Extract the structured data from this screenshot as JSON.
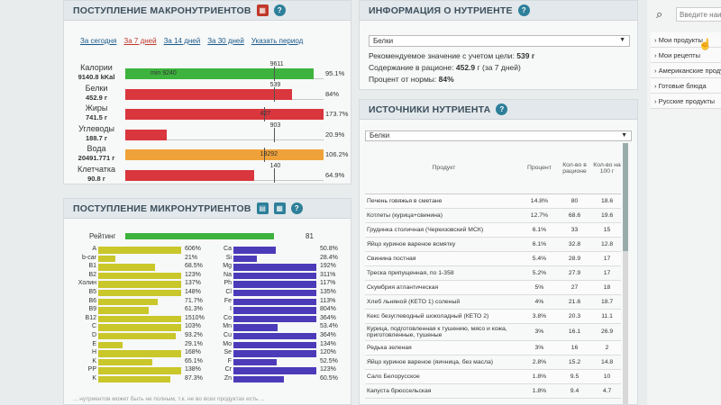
{
  "macro": {
    "title": "ПОСТУПЛЕНИЕ МАКРОНУТРИЕНТОВ",
    "periods": [
      "За сегодня",
      "За 7 дней",
      "За 14 дней",
      "За 30 дней",
      "Указать период"
    ],
    "active_period": 1,
    "rows": [
      {
        "name": "Калории",
        "amount": "9140.8 kKal",
        "target": "9611",
        "pct": "95.1%",
        "fill": 0.951,
        "color": "#3db33d",
        "min_label": "min 9240"
      },
      {
        "name": "Белки",
        "amount": "452.9 г",
        "target": "539",
        "pct": "84%",
        "fill": 0.84,
        "color": "#d9363e"
      },
      {
        "name": "Жиры",
        "amount": "741.5 г",
        "target": "427",
        "pct": "173.7%",
        "fill": 1.0,
        "color": "#d9363e"
      },
      {
        "name": "Углеводы",
        "amount": "188.7 г",
        "target": "903",
        "pct": "20.9%",
        "fill": 0.209,
        "color": "#d9363e"
      },
      {
        "name": "Вода",
        "amount": "20491.771 г",
        "target": "19292",
        "pct": "106.2%",
        "fill": 1.0,
        "color": "#f0a23a"
      },
      {
        "name": "Клетчатка",
        "amount": "90.8 г",
        "target": "140",
        "pct": "64.9%",
        "fill": 0.649,
        "color": "#d9363e"
      }
    ]
  },
  "micro": {
    "title": "ПОСТУПЛЕНИЕ МИКРОНУТРИЕНТОВ",
    "rating_label": "Рейтинг",
    "rating_value": "81",
    "vitamins": [
      {
        "n": "A",
        "p": "606%",
        "f": 1.0
      },
      {
        "n": "b-car",
        "p": "21%",
        "f": 0.21
      },
      {
        "n": "B1",
        "p": "68.5%",
        "f": 0.685
      },
      {
        "n": "B2",
        "p": "123%",
        "f": 1.0
      },
      {
        "n": "Холин",
        "p": "137%",
        "f": 1.0
      },
      {
        "n": "B5",
        "p": "148%",
        "f": 1.0
      },
      {
        "n": "B6",
        "p": "71.7%",
        "f": 0.717
      },
      {
        "n": "B9",
        "p": "61.3%",
        "f": 0.613
      },
      {
        "n": "B12",
        "p": "1510%",
        "f": 1.0
      },
      {
        "n": "C",
        "p": "103%",
        "f": 1.0
      },
      {
        "n": "D",
        "p": "93.2%",
        "f": 0.932
      },
      {
        "n": "E",
        "p": "29.1%",
        "f": 0.291
      },
      {
        "n": "H",
        "p": "168%",
        "f": 1.0
      },
      {
        "n": "K",
        "p": "65.1%",
        "f": 0.651
      },
      {
        "n": "PP",
        "p": "138%",
        "f": 1.0
      },
      {
        "n": "K",
        "p": "87.3%",
        "f": 0.873
      }
    ],
    "minerals": [
      {
        "n": "Ca",
        "p": "50.8%",
        "f": 0.508
      },
      {
        "n": "Si",
        "p": "28.4%",
        "f": 0.284
      },
      {
        "n": "Mg",
        "p": "192%",
        "f": 1.0
      },
      {
        "n": "Na",
        "p": "311%",
        "f": 1.0
      },
      {
        "n": "Ph",
        "p": "117%",
        "f": 1.0
      },
      {
        "n": "Cl",
        "p": "135%",
        "f": 1.0
      },
      {
        "n": "Fe",
        "p": "113%",
        "f": 1.0
      },
      {
        "n": "I",
        "p": "804%",
        "f": 1.0
      },
      {
        "n": "Co",
        "p": "364%",
        "f": 1.0
      },
      {
        "n": "Mn",
        "p": "53.4%",
        "f": 0.534
      },
      {
        "n": "Cu",
        "p": "364%",
        "f": 1.0
      },
      {
        "n": "Mo",
        "p": "134%",
        "f": 1.0
      },
      {
        "n": "Se",
        "p": "120%",
        "f": 1.0
      },
      {
        "n": "F",
        "p": "52.5%",
        "f": 0.525
      },
      {
        "n": "Cr",
        "p": "123%",
        "f": 1.0
      },
      {
        "n": "Zn",
        "p": "60.5%",
        "f": 0.605
      }
    ],
    "footnote": "... нутриентов может быть не полным, т.к. не во всех продуктах есть ..."
  },
  "info": {
    "title": "ИНФОРМАЦИЯ О НУТРИЕНТЕ",
    "selected": "Белки",
    "rec_label": "Рекомендуемое значение с учетом цели:",
    "rec_value": "539 г",
    "content_label": "Содержание в рационе:",
    "content_value": "452.9",
    "content_suffix": "г (за 7 дней)",
    "pct_label": "Процент от нормы:",
    "pct_value": "84%"
  },
  "sources": {
    "title": "ИСТОЧНИКИ НУТРИЕНТА",
    "selected": "Белки",
    "headers": [
      "Продукт",
      "Процент",
      "Кол-во в рационе",
      "Кол-во на 100 г"
    ],
    "rows": [
      [
        "Печень говяжья в сметане",
        "14.8%",
        "80",
        "18.6"
      ],
      [
        "Котлеты (курица+свинина)",
        "12.7%",
        "68.6",
        "19.6"
      ],
      [
        "Грудинка столичная (Черкизовский МСК)",
        "6.1%",
        "33",
        "15"
      ],
      [
        "Яйцо куриное вареное всмятку",
        "6.1%",
        "32.8",
        "12.8"
      ],
      [
        "Свинина постная",
        "5.4%",
        "28.9",
        "17"
      ],
      [
        "Треска припущенная, по 1-358",
        "5.2%",
        "27.9",
        "17"
      ],
      [
        "Скумбрия атлантическая",
        "5%",
        "27",
        "18"
      ],
      [
        "Хлеб льняной (КЕТО 1) соленый",
        "4%",
        "21.6",
        "18.7"
      ],
      [
        "Кекс безуглеводный шоколадный (КЕТО 2)",
        "3.8%",
        "20.3",
        "11.1"
      ],
      [
        "Курица, подготовленная к тушению, мясо и кожа, приготовленные, тушеные",
        "3%",
        "16.1",
        "26.9"
      ],
      [
        "Редька зеленая",
        "3%",
        "16",
        "2"
      ],
      [
        "Яйцо куриное вареное (яичница, без масла)",
        "2.8%",
        "15.2",
        "14.8"
      ],
      [
        "Сало Белорусское",
        "1.8%",
        "9.5",
        "10"
      ],
      [
        "Капуста брюссельская",
        "1.8%",
        "9.4",
        "4.7"
      ]
    ]
  },
  "right": {
    "search_placeholder": "Введите наим",
    "items": [
      "Мои продукты",
      "Мои рецепты",
      "Американские продукты",
      "Готовые блюда",
      "Русские продукты"
    ]
  }
}
